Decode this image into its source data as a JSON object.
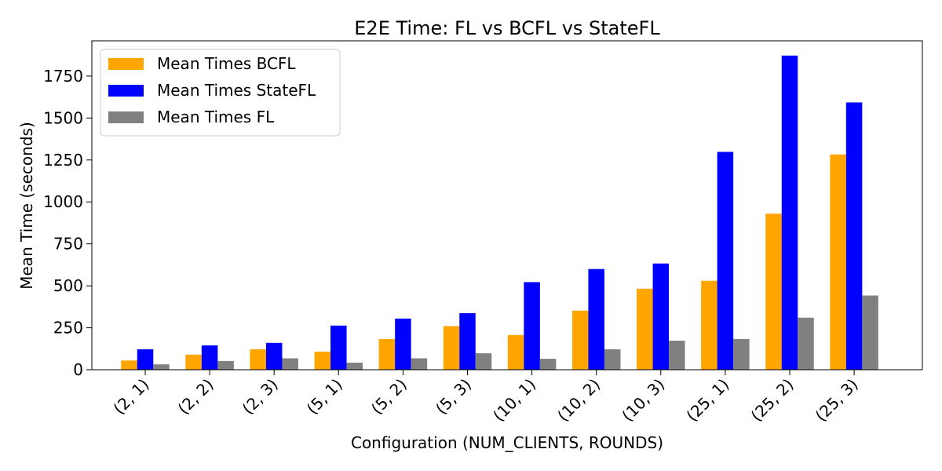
{
  "chart_data": {
    "type": "bar",
    "title": "E2E Time: FL vs BCFL vs StateFL",
    "xlabel": "Configuration (NUM_CLIENTS, ROUNDS)",
    "ylabel": "Mean Time (seconds)",
    "categories": [
      "(2, 1)",
      "(2, 2)",
      "(2, 3)",
      "(5, 1)",
      "(5, 2)",
      "(5, 3)",
      "(10, 1)",
      "(10, 2)",
      "(10, 3)",
      "(25, 1)",
      "(25, 2)",
      "(25, 3)"
    ],
    "series": [
      {
        "name": "Mean Times BCFL",
        "color": "#ffa500",
        "values": [
          55,
          90,
          122,
          108,
          183,
          260,
          207,
          352,
          483,
          530,
          930,
          1283
        ]
      },
      {
        "name": "Mean Times StateFL",
        "color": "#0000ff",
        "values": [
          122,
          145,
          160,
          263,
          305,
          337,
          522,
          600,
          633,
          1298,
          1872,
          1593
        ]
      },
      {
        "name": "Mean Times FL",
        "color": "#808080",
        "values": [
          32,
          52,
          68,
          42,
          68,
          98,
          65,
          122,
          173,
          183,
          310,
          442
        ]
      }
    ],
    "ylim": [
      0,
      1960
    ],
    "yticks": [
      0,
      250,
      500,
      750,
      1000,
      1250,
      1500,
      1750
    ],
    "grid": false,
    "legend": "top-left"
  }
}
